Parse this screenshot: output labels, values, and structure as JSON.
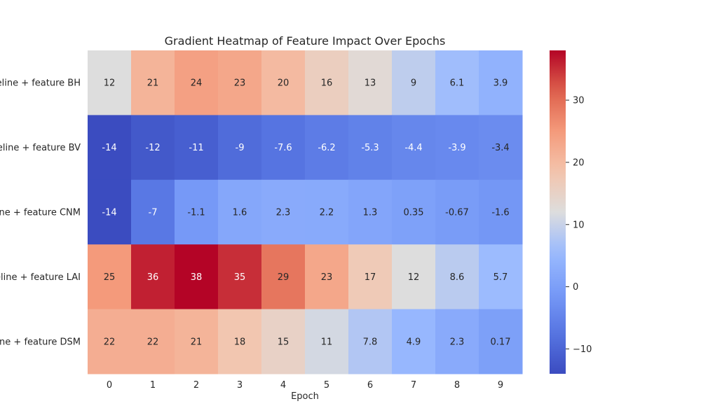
{
  "chart_data": {
    "type": "heatmap",
    "title": "Gradient Heatmap of Feature Impact Over Epochs",
    "xlabel": "Epoch",
    "ylabel": "",
    "x": [
      "0",
      "1",
      "2",
      "3",
      "4",
      "5",
      "6",
      "7",
      "8",
      "9"
    ],
    "y": [
      "Baseline + feature BH",
      "Baseline + feature BV",
      "Baseline + feature CNM",
      "Baseline + feature LAI",
      "Baseline + feature DSM"
    ],
    "values": [
      [
        12,
        21,
        24,
        23,
        20,
        16,
        13,
        9,
        6.1,
        3.9
      ],
      [
        -14,
        -12,
        -11,
        -9,
        -7.6,
        -6.2,
        -5.3,
        -4.4,
        -3.9,
        -3.4
      ],
      [
        -14,
        -7,
        -1.1,
        1.6,
        2.3,
        2.2,
        1.3,
        0.35,
        -0.67,
        -1.6
      ],
      [
        25,
        36,
        38,
        35,
        29,
        23,
        17,
        12,
        8.6,
        5.7
      ],
      [
        22,
        22,
        21,
        18,
        15,
        11,
        7.8,
        4.9,
        2.3,
        0.17
      ]
    ],
    "cell_labels": [
      [
        "12",
        "21",
        "24",
        "23",
        "20",
        "16",
        "13",
        "9",
        "6.1",
        "3.9"
      ],
      [
        "-14",
        "-12",
        "-11",
        "-9",
        "-7.6",
        "-6.2",
        "-5.3",
        "-4.4",
        "-3.9",
        "-3.4"
      ],
      [
        "-14",
        "-7",
        "-1.1",
        "1.6",
        "2.3",
        "2.2",
        "1.3",
        "0.35",
        "-0.67",
        "-1.6"
      ],
      [
        "25",
        "36",
        "38",
        "35",
        "29",
        "23",
        "17",
        "12",
        "8.6",
        "5.7"
      ],
      [
        "22",
        "22",
        "21",
        "18",
        "15",
        "11",
        "7.8",
        "4.9",
        "2.3",
        "0.17"
      ]
    ],
    "colorbar": {
      "min": -14,
      "max": 38,
      "ticks": [
        -10,
        0,
        10,
        20,
        30
      ],
      "tick_labels": [
        "−10",
        "0",
        "10",
        "20",
        "30"
      ],
      "colormap": "coolwarm"
    }
  }
}
